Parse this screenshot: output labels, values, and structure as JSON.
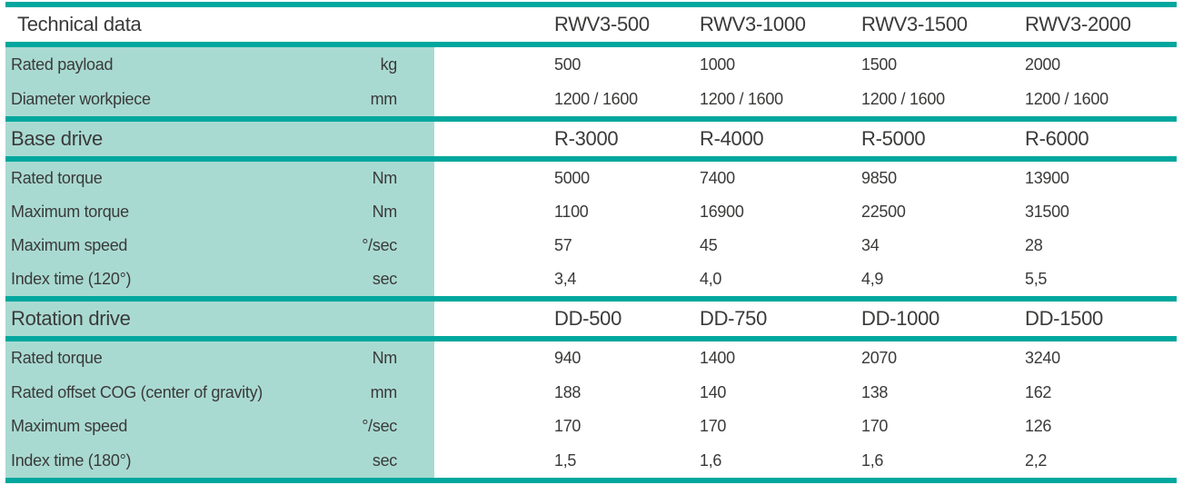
{
  "colors": {
    "separator_teal": "#00A79E",
    "panel_teal": "#A9DAD2",
    "text": "#3A3A39"
  },
  "table": {
    "title": "Technical data",
    "model_headers": [
      "RWV3-500",
      "RWV3-1000",
      "RWV3-1500",
      "RWV3-2000"
    ],
    "general_rows": [
      {
        "label": "Rated payload",
        "unit": "kg",
        "values": [
          "500",
          "1000",
          "1500",
          "2000"
        ]
      },
      {
        "label": "Diameter workpiece",
        "unit": "mm",
        "values": [
          "1200 / 1600",
          "1200 / 1600",
          "1200 / 1600",
          "1200 / 1600"
        ]
      }
    ],
    "sections": [
      {
        "title": "Base drive",
        "models": [
          "R-3000",
          "R-4000",
          "R-5000",
          "R-6000"
        ],
        "rows": [
          {
            "label": "Rated torque",
            "unit": "Nm",
            "values": [
              "5000",
              "7400",
              "9850",
              "13900"
            ]
          },
          {
            "label": "Maximum torque",
            "unit": "Nm",
            "values": [
              "1100",
              "16900",
              "22500",
              "31500"
            ]
          },
          {
            "label": "Maximum speed",
            "unit": "°/sec",
            "values": [
              "57",
              "45",
              "34",
              "28"
            ]
          },
          {
            "label": "Index time (120°)",
            "unit": "sec",
            "values": [
              "3,4",
              "4,0",
              "4,9",
              "5,5"
            ]
          }
        ]
      },
      {
        "title": "Rotation drive",
        "models": [
          "DD-500",
          "DD-750",
          "DD-1000",
          "DD-1500"
        ],
        "rows": [
          {
            "label": "Rated torque",
            "unit": "Nm",
            "values": [
              "940",
              "1400",
              "2070",
              "3240"
            ]
          },
          {
            "label": "Rated offset COG (center of gravity)",
            "unit": "mm",
            "values": [
              "188",
              "140",
              "138",
              "162"
            ]
          },
          {
            "label": "Maximum speed",
            "unit": "°/sec",
            "values": [
              "170",
              "170",
              "170",
              "126"
            ]
          },
          {
            "label": "Index time (180°)",
            "unit": "sec",
            "values": [
              "1,5",
              "1,6",
              "1,6",
              "2,2"
            ]
          }
        ]
      }
    ]
  }
}
